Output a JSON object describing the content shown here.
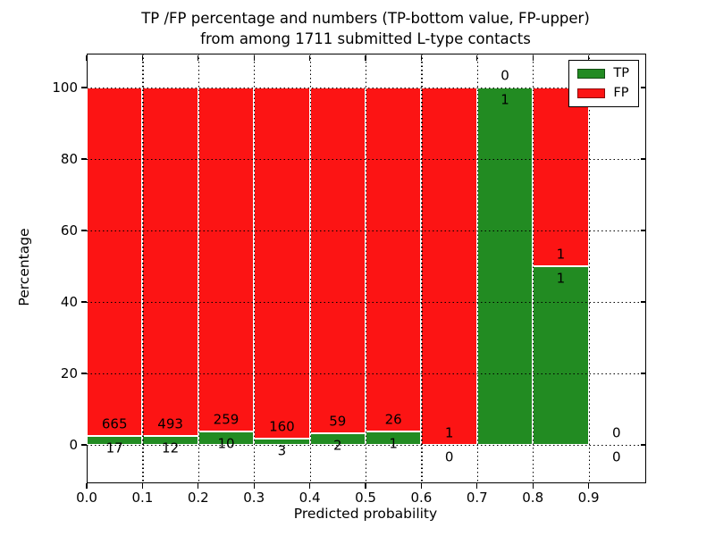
{
  "title": {
    "line1": "TP /FP percentage and numbers (TP-bottom value, FP-upper)",
    "line2": "from among 1711 submitted L-type contacts"
  },
  "axes": {
    "xlabel": "Predicted probability",
    "ylabel": "Percentage"
  },
  "legend": {
    "items": [
      {
        "label": "TP",
        "color": "#228b22"
      },
      {
        "label": "FP",
        "color": "#fc1414"
      }
    ]
  },
  "chart_data": {
    "type": "bar",
    "stacked": true,
    "orientation": "vertical",
    "title": "TP /FP percentage and numbers (TP-bottom value, FP-upper) from among 1711 submitted L-type contacts",
    "total_contacts": 1711,
    "xlabel": "Predicted probability",
    "ylabel": "Percentage",
    "xlim": [
      0.0,
      1.0
    ],
    "ylim": [
      -10.25,
      109.5
    ],
    "xticks": [
      "0.0",
      "0.1",
      "0.2",
      "0.3",
      "0.4",
      "0.5",
      "0.6",
      "0.7",
      "0.8",
      "0.9"
    ],
    "yticks": [
      0,
      20,
      40,
      60,
      80,
      100
    ],
    "grid": "dotted black, drawn above bars",
    "legend_position": "upper right",
    "bar_edge_color": "#ffffff",
    "colors": {
      "tp": "#228b22",
      "fp": "#fc1414"
    },
    "annotation_rule": "FP count above TP/FP boundary, TP count below boundary",
    "bins": [
      {
        "x0": 0.0,
        "x1": 0.1,
        "tp_count": 17,
        "fp_count": 665
      },
      {
        "x0": 0.1,
        "x1": 0.2,
        "tp_count": 12,
        "fp_count": 493
      },
      {
        "x0": 0.2,
        "x1": 0.3,
        "tp_count": 10,
        "fp_count": 259
      },
      {
        "x0": 0.3,
        "x1": 0.4,
        "tp_count": 3,
        "fp_count": 160
      },
      {
        "x0": 0.4,
        "x1": 0.5,
        "tp_count": 2,
        "fp_count": 59
      },
      {
        "x0": 0.5,
        "x1": 0.6,
        "tp_count": 1,
        "fp_count": 26
      },
      {
        "x0": 0.6,
        "x1": 0.7,
        "tp_count": 0,
        "fp_count": 1
      },
      {
        "x0": 0.7,
        "x1": 0.8,
        "tp_count": 1,
        "fp_count": 0
      },
      {
        "x0": 0.8,
        "x1": 0.9,
        "tp_count": 1,
        "fp_count": 1
      },
      {
        "x0": 0.9,
        "x1": 1.0,
        "tp_count": 0,
        "fp_count": 0
      }
    ]
  }
}
